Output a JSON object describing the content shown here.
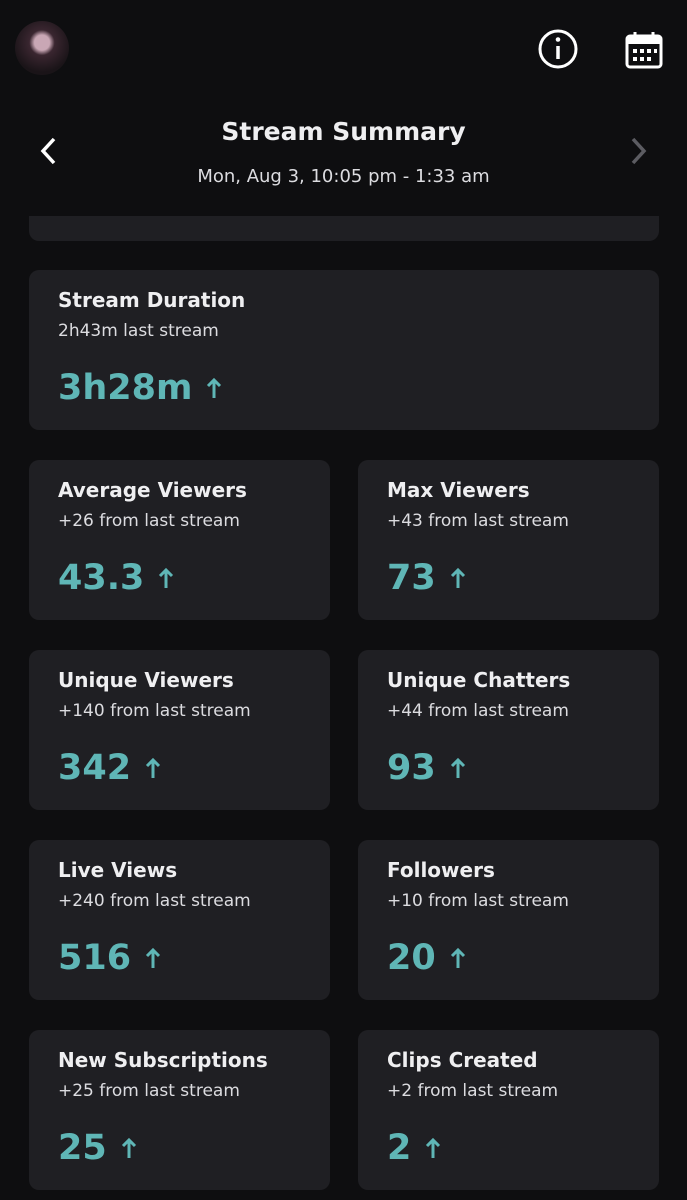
{
  "header": {
    "title": "Stream Summary",
    "subtitle": "Mon, Aug 3, 10:05 pm - 1:33 am"
  },
  "cards": [
    {
      "title": "Stream Duration",
      "comparison": "2h43m last stream",
      "value": "3h28m"
    },
    {
      "title": "Average Viewers",
      "comparison": "+26 from last stream",
      "value": "43.3"
    },
    {
      "title": "Max Viewers",
      "comparison": "+43 from last stream",
      "value": "73"
    },
    {
      "title": "Unique Viewers",
      "comparison": "+140 from last stream",
      "value": "342"
    },
    {
      "title": "Unique Chatters",
      "comparison": "+44 from last stream",
      "value": "93"
    },
    {
      "title": "Live Views",
      "comparison": "+240 from last stream",
      "value": "516"
    },
    {
      "title": "Followers",
      "comparison": "+10 from last stream",
      "value": "20"
    },
    {
      "title": "New Subscriptions",
      "comparison": "+25 from last stream",
      "value": "25"
    },
    {
      "title": "Clips Created",
      "comparison": "+2 from last stream",
      "value": "2"
    }
  ]
}
